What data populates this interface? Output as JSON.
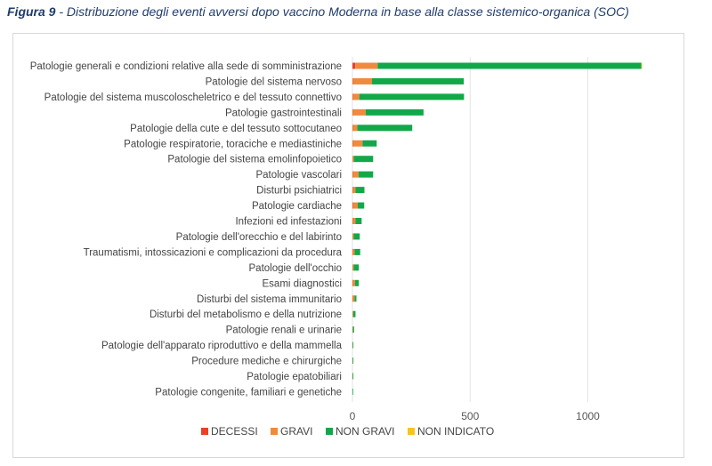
{
  "caption": {
    "bold": "Figura 9",
    "rest": " - Distribuzione degli eventi avversi dopo vaccino Moderna in base alla classe sistemico-organica (SOC)"
  },
  "chart_data": {
    "type": "bar",
    "orientation": "horizontal",
    "stacked": true,
    "title": "",
    "xlabel": "",
    "ylabel": "",
    "xlim": [
      0,
      1300
    ],
    "xticks": [
      0,
      500,
      1000
    ],
    "grid": true,
    "legend_position": "bottom",
    "categories": [
      "Patologie generali e condizioni relative alla sede di somministrazione",
      "Patologie del sistema nervoso",
      "Patologie del sistema muscoloscheletrico e del tessuto connettivo",
      "Patologie gastrointestinali",
      "Patologie della cute e del tessuto sottocutaneo",
      "Patologie respiratorie, toraciche e mediastiniche",
      "Patologie del sistema emolinfopoietico",
      "Patologie vascolari",
      "Disturbi psichiatrici",
      "Patologie cardiache",
      "Infezioni ed infestazioni",
      "Patologie dell'orecchio e del labirinto",
      "Traumatismi, intossicazioni e complicazioni da procedura",
      "Patologie dell'occhio",
      "Esami diagnostici",
      "Disturbi del sistema immunitario",
      "Disturbi del metabolismo e della nutrizione",
      "Patologie renali e urinarie",
      "Patologie dell'apparato riproduttivo e della mammella",
      "Procedure mediche e chirurgiche",
      "Patologie epatobiliari",
      "Patologie congenite, familiari e genetiche"
    ],
    "series": [
      {
        "name": "DECESSI",
        "color": "#e8402a",
        "values": [
          12,
          1,
          1,
          1,
          1,
          1,
          0,
          1,
          1,
          2,
          1,
          0,
          1,
          0,
          1,
          1,
          0,
          0,
          0,
          0,
          0,
          0
        ]
      },
      {
        "name": "GRAVI",
        "color": "#f08a3c",
        "values": [
          95,
          82,
          28,
          55,
          20,
          42,
          6,
          25,
          12,
          20,
          12,
          5,
          8,
          5,
          10,
          8,
          3,
          2,
          1,
          1,
          1,
          0
        ]
      },
      {
        "name": "NON GRAVI",
        "color": "#12a84a",
        "values": [
          1120,
          390,
          445,
          246,
          233,
          60,
          82,
          62,
          38,
          28,
          26,
          26,
          24,
          22,
          16,
          8,
          10,
          5,
          3,
          1,
          1,
          1
        ]
      },
      {
        "name": "NON INDICATO",
        "color": "#f5c518",
        "values": [
          1,
          0,
          0,
          0,
          0,
          0,
          0,
          0,
          0,
          0,
          0,
          0,
          0,
          0,
          0,
          0,
          0,
          0,
          0,
          0,
          0,
          0
        ]
      }
    ]
  }
}
